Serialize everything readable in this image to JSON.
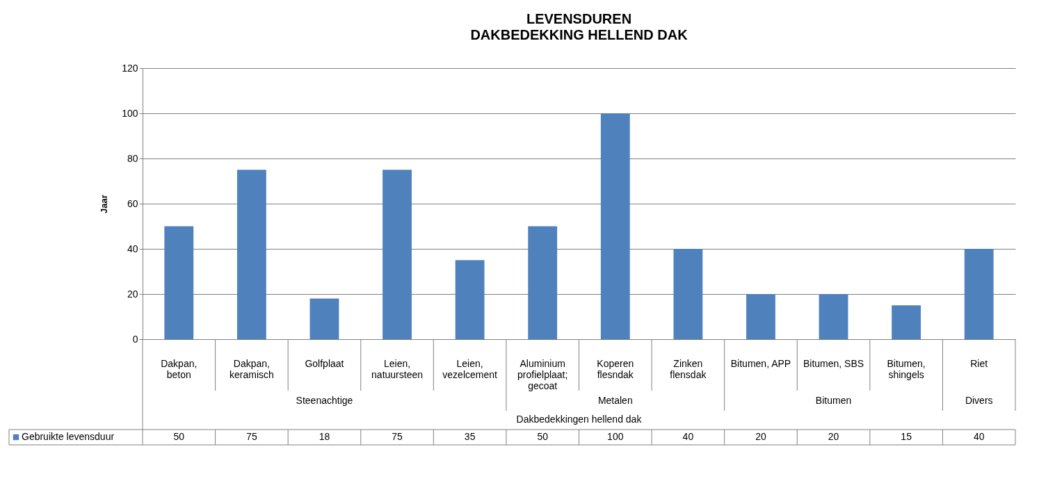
{
  "chart_data": {
    "type": "bar",
    "title": "LEVENSDUREN",
    "subtitle": "DAKBEDEKKING HELLEND DAK",
    "ylabel": "Jaar",
    "categories": [
      "Dakpan, beton",
      "Dakpan, keramisch",
      "Golfplaat",
      "Leien, natuursteen",
      "Leien, vezelcement",
      "Aluminium profielplaat; gecoat",
      "Koperen flesndak",
      "Zinken flensdak",
      "Bitumen, APP",
      "Bitumen, SBS",
      "Bitumen, shingels",
      "Riet"
    ],
    "series": [
      {
        "name": "Gebruikte levensduur",
        "color": "#4f81bd",
        "values": [
          50,
          75,
          18,
          75,
          35,
          50,
          100,
          40,
          20,
          20,
          15,
          40
        ]
      }
    ],
    "ylim": [
      0,
      120
    ],
    "yticks": [
      0,
      20,
      40,
      60,
      80,
      100,
      120
    ],
    "grid": "y",
    "data_labels": true,
    "legend": "bottom",
    "annotations": [
      "Steenachtige",
      "Metalen",
      "Bitumen",
      "Divers",
      "Dakbedekkingen hellend dak"
    ]
  }
}
